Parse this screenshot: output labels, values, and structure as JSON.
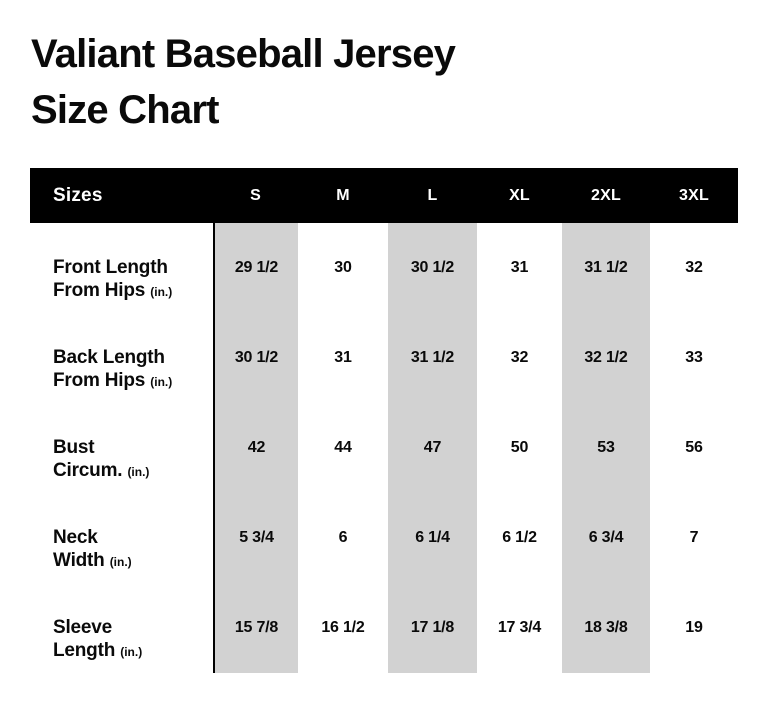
{
  "page": {
    "title_line1": "Valiant Baseball Jersey",
    "title_line2": "Size Chart"
  },
  "colors": {
    "background": "#ffffff",
    "text": "#0a0a0a",
    "header_bg": "#000000",
    "header_text": "#ffffff",
    "stripe": "#d2d2d2"
  },
  "table": {
    "header": {
      "label": "Sizes",
      "sizes": [
        "S",
        "M",
        "L",
        "XL",
        "2XL",
        "3XL"
      ]
    },
    "shaded_columns": [
      "S",
      "L",
      "2XL"
    ],
    "rows": [
      {
        "label_line1": "Front Length",
        "label_line2": "From Hips",
        "unit": "(in.)",
        "values": [
          "29 1/2",
          "30",
          "30 1/2",
          "31",
          "31 1/2",
          "32"
        ]
      },
      {
        "label_line1": "Back Length",
        "label_line2": "From Hips",
        "unit": "(in.)",
        "values": [
          "30 1/2",
          "31",
          "31 1/2",
          "32",
          "32 1/2",
          "33"
        ]
      },
      {
        "label_line1": "Bust",
        "label_line2": "Circum.",
        "unit": "(in.)",
        "values": [
          "42",
          "44",
          "47",
          "50",
          "53",
          "56"
        ]
      },
      {
        "label_line1": "Neck",
        "label_line2": "Width",
        "unit": "(in.)",
        "values": [
          "5 3/4",
          "6",
          "6 1/4",
          "6 1/2",
          "6 3/4",
          "7"
        ]
      },
      {
        "label_line1": "Sleeve",
        "label_line2": "Length",
        "unit": "(in.)",
        "values": [
          "15 7/8",
          "16 1/2",
          "17 1/8",
          "17 3/4",
          "18 3/8",
          "19"
        ]
      }
    ]
  },
  "chart_data": {
    "type": "table",
    "title": "Valiant Baseball Jersey Size Chart",
    "columns": [
      "Sizes",
      "S",
      "M",
      "L",
      "XL",
      "2XL",
      "3XL"
    ],
    "rows": [
      [
        "Front Length From Hips (in.)",
        "29 1/2",
        "30",
        "30 1/2",
        "31",
        "31 1/2",
        "32"
      ],
      [
        "Back Length From Hips (in.)",
        "30 1/2",
        "31",
        "31 1/2",
        "32",
        "32 1/2",
        "33"
      ],
      [
        "Bust Circum. (in.)",
        "42",
        "44",
        "47",
        "50",
        "53",
        "56"
      ],
      [
        "Neck Width (in.)",
        "5 3/4",
        "6",
        "6 1/4",
        "6 1/2",
        "6 3/4",
        "7"
      ],
      [
        "Sleeve Length (in.)",
        "15 7/8",
        "16 1/2",
        "17 1/8",
        "17 3/4",
        "18 3/8",
        "19"
      ]
    ],
    "layout_hints": {
      "shaded_columns": [
        "S",
        "L",
        "2XL"
      ],
      "header_style": "black bar, white text",
      "units": "inches"
    }
  }
}
